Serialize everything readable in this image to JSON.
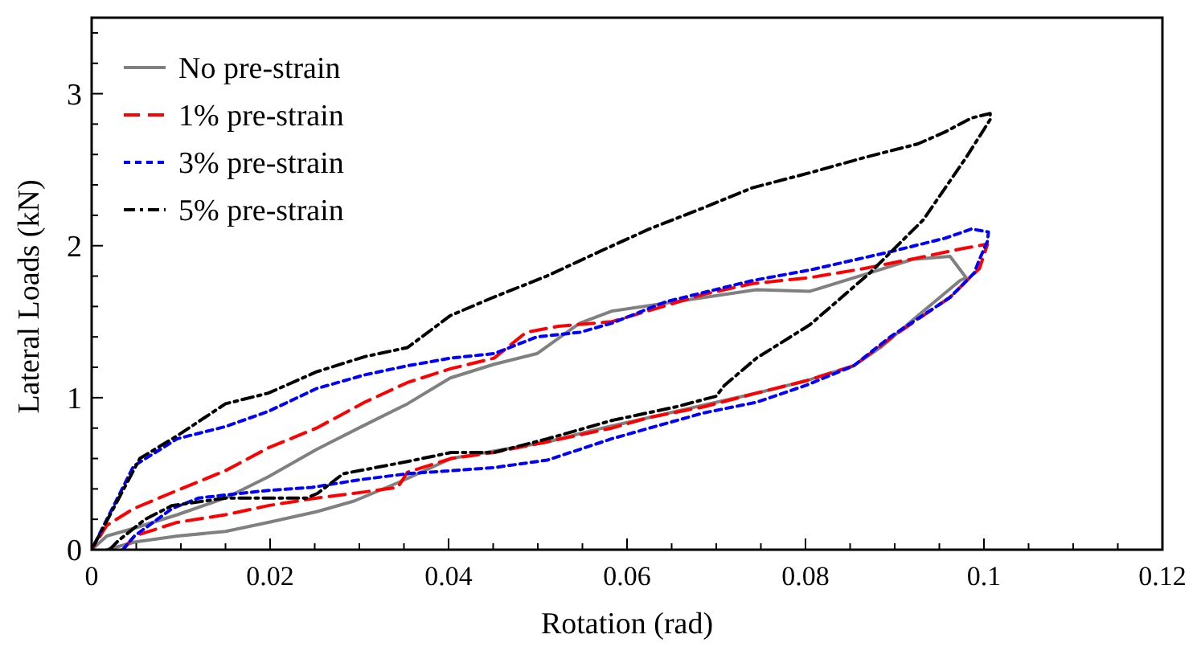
{
  "chart_data": {
    "type": "line",
    "xlabel": "Rotation (rad)",
    "ylabel": "Lateral Loads (kN)",
    "xlim": [
      0,
      0.12
    ],
    "ylim": [
      0,
      3.5
    ],
    "xticks": [
      0,
      {
        "value": 0.005,
        "label": null
      },
      {
        "value": 0.01,
        "label": null
      },
      {
        "value": 0.015,
        "label": null
      },
      0.02,
      {
        "value": 0.025,
        "label": null
      },
      {
        "value": 0.03,
        "label": null
      },
      {
        "value": 0.035,
        "label": null
      },
      0.04,
      {
        "value": 0.045,
        "label": null
      },
      {
        "value": 0.05,
        "label": null
      },
      {
        "value": 0.055,
        "label": null
      },
      0.06,
      {
        "value": 0.065,
        "label": null
      },
      {
        "value": 0.07,
        "label": null
      },
      {
        "value": 0.075,
        "label": null
      },
      0.08,
      {
        "value": 0.085,
        "label": null
      },
      {
        "value": 0.09,
        "label": null
      },
      {
        "value": 0.095,
        "label": null
      },
      0.1,
      {
        "value": 0.105,
        "label": null
      },
      {
        "value": 0.11,
        "label": null
      },
      {
        "value": 0.115,
        "label": null
      },
      0.12
    ],
    "yticks": [
      0,
      {
        "value": 0.2,
        "label": null
      },
      {
        "value": 0.4,
        "label": null
      },
      {
        "value": 0.6,
        "label": null
      },
      {
        "value": 0.8,
        "label": null
      },
      1,
      {
        "value": 1.2,
        "label": null
      },
      {
        "value": 1.4,
        "label": null
      },
      {
        "value": 1.6,
        "label": null
      },
      {
        "value": 1.8,
        "label": null
      },
      2,
      {
        "value": 2.2,
        "label": null
      },
      {
        "value": 2.4,
        "label": null
      },
      {
        "value": 2.6,
        "label": null
      },
      {
        "value": 2.8,
        "label": null
      },
      3,
      {
        "value": 3.2,
        "label": null
      },
      {
        "value": 3.4,
        "label": null
      }
    ],
    "grid": false,
    "legend": "top left",
    "series": [
      {
        "name": "No pre-strain",
        "color": "#808080",
        "line_style": "solid",
        "x": [
          0.0017,
          0.0048,
          0.0096,
          0.015,
          0.0198,
          0.0252,
          0.0294,
          0.0343,
          0.0403,
          0.0511,
          0.0565,
          0.0625,
          0.0745,
          0.08,
          0.0854,
          0.0884,
          0.0926,
          0.0973,
          0.098,
          0.0962,
          0.092,
          0.0866,
          0.0805,
          0.0745,
          0.0583,
          0.0547,
          0.0499,
          0.0451,
          0.0402,
          0.0354,
          0.0306,
          0.0252,
          0.0198,
          0.015,
          0.0096,
          0.0047,
          0.0017,
          0
        ],
        "values": [
          0,
          0.05,
          0.09,
          0.12,
          0.18,
          0.25,
          0.32,
          0.44,
          0.6,
          0.71,
          0.79,
          0.87,
          1.03,
          1.11,
          1.21,
          1.33,
          1.54,
          1.77,
          1.79,
          1.93,
          1.91,
          1.81,
          1.7,
          1.71,
          1.57,
          1.49,
          1.29,
          1.22,
          1.13,
          0.96,
          0.82,
          0.66,
          0.48,
          0.34,
          0.23,
          0.14,
          0.09,
          0
        ]
      },
      {
        "name": "1% pre-strain",
        "color": "#ff0000",
        "line_style": "dashed",
        "x": [
          0.0035,
          0.0048,
          0.0096,
          0.015,
          0.0198,
          0.0252,
          0.0306,
          0.0343,
          0.0354,
          0.0403,
          0.0451,
          0.0511,
          0.0583,
          0.0625,
          0.0686,
          0.0745,
          0.08,
          0.0854,
          0.0902,
          0.0962,
          0.0986,
          0.0995,
          0.1004,
          0.0975,
          0.0926,
          0.0866,
          0.0805,
          0.074,
          0.0686,
          0.0583,
          0.0523,
          0.0487,
          0.0451,
          0.0402,
          0.0354,
          0.0306,
          0.0252,
          0.0198,
          0.015,
          0.0096,
          0.0047,
          0.0017,
          0
        ],
        "values": [
          0,
          0.09,
          0.18,
          0.23,
          0.29,
          0.34,
          0.38,
          0.41,
          0.51,
          0.6,
          0.64,
          0.71,
          0.8,
          0.87,
          0.94,
          1.03,
          1.11,
          1.21,
          1.42,
          1.66,
          1.8,
          1.85,
          2.01,
          1.98,
          1.92,
          1.85,
          1.79,
          1.75,
          1.68,
          1.5,
          1.47,
          1.43,
          1.26,
          1.19,
          1.1,
          0.97,
          0.8,
          0.67,
          0.52,
          0.39,
          0.27,
          0.16,
          0
        ]
      },
      {
        "name": "3% pre-strain",
        "color": "#0000ff",
        "line_style": "dotted",
        "x": [
          0.0035,
          0.0048,
          0.009,
          0.012,
          0.015,
          0.0198,
          0.0247,
          0.03,
          0.0354,
          0.0403,
          0.0451,
          0.0511,
          0.0583,
          0.0625,
          0.0686,
          0.0745,
          0.08,
          0.0854,
          0.0895,
          0.0962,
          0.0989,
          0.0995,
          0.1004,
          0.1005,
          0.0986,
          0.0957,
          0.0895,
          0.0805,
          0.074,
          0.0643,
          0.0583,
          0.0547,
          0.0499,
          0.0451,
          0.0402,
          0.0354,
          0.0306,
          0.0252,
          0.0198,
          0.015,
          0.0096,
          0.0047,
          0
        ],
        "values": [
          0,
          0.09,
          0.27,
          0.34,
          0.36,
          0.39,
          0.41,
          0.46,
          0.5,
          0.52,
          0.54,
          0.59,
          0.73,
          0.8,
          0.9,
          0.97,
          1.08,
          1.21,
          1.4,
          1.66,
          1.82,
          1.91,
          2.03,
          2.09,
          2.11,
          2.05,
          1.96,
          1.84,
          1.77,
          1.63,
          1.49,
          1.43,
          1.4,
          1.29,
          1.26,
          1.21,
          1.15,
          1.06,
          0.91,
          0.81,
          0.73,
          0.55,
          0
        ]
      },
      {
        "name": "5% pre-strain",
        "color": "#000000",
        "line_style": "dashdot",
        "x": [
          0.002,
          0.003,
          0.006,
          0.009,
          0.015,
          0.0198,
          0.0241,
          0.0253,
          0.0282,
          0.0354,
          0.0403,
          0.0451,
          0.0511,
          0.0583,
          0.0655,
          0.07,
          0.0709,
          0.0745,
          0.0805,
          0.0872,
          0.0932,
          0.098,
          0.1007,
          0.1007,
          0.0986,
          0.0957,
          0.0926,
          0.0866,
          0.0805,
          0.074,
          0.0686,
          0.0625,
          0.0565,
          0.051,
          0.045,
          0.0402,
          0.0354,
          0.0306,
          0.0252,
          0.0198,
          0.015,
          0.0096,
          0.0054,
          0
        ],
        "values": [
          0,
          0.06,
          0.2,
          0.29,
          0.34,
          0.34,
          0.34,
          0.37,
          0.5,
          0.58,
          0.64,
          0.64,
          0.73,
          0.85,
          0.94,
          1.01,
          1.08,
          1.26,
          1.48,
          1.82,
          2.17,
          2.58,
          2.83,
          2.87,
          2.84,
          2.75,
          2.67,
          2.58,
          2.48,
          2.38,
          2.25,
          2.11,
          1.95,
          1.8,
          1.66,
          1.54,
          1.33,
          1.27,
          1.17,
          1.03,
          0.96,
          0.75,
          0.6,
          0
        ]
      }
    ]
  }
}
